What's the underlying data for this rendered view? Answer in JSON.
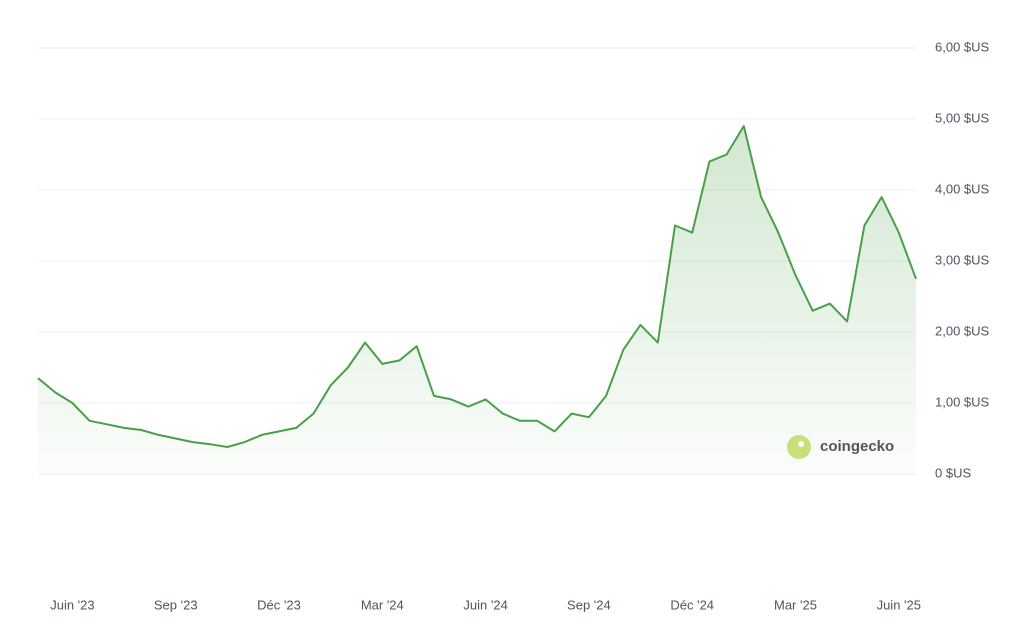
{
  "chart_data": {
    "type": "line",
    "categories": [
      null,
      null,
      "Juin '23",
      null,
      null,
      null,
      null,
      null,
      "Sep '23",
      null,
      null,
      null,
      null,
      null,
      "Déc '23",
      null,
      null,
      null,
      null,
      null,
      "Mar '24",
      null,
      null,
      null,
      null,
      null,
      "Juin '24",
      null,
      null,
      null,
      null,
      null,
      "Sep '24",
      null,
      null,
      null,
      null,
      null,
      "Déc '24",
      null,
      null,
      null,
      null,
      null,
      "Mar '25",
      null,
      null,
      null,
      null,
      null,
      "Juin '25",
      null
    ],
    "series": [
      {
        "color": "#4a9f48",
        "values": [
          1.35,
          1.15,
          1.0,
          0.75,
          0.7,
          0.65,
          0.62,
          0.55,
          0.5,
          0.45,
          0.42,
          0.38,
          0.45,
          0.55,
          0.6,
          0.65,
          0.85,
          1.25,
          1.5,
          1.85,
          1.55,
          1.6,
          1.8,
          1.1,
          1.05,
          0.95,
          1.05,
          0.85,
          0.75,
          0.75,
          0.6,
          0.85,
          0.8,
          1.1,
          1.75,
          2.1,
          1.85,
          3.5,
          3.4,
          4.4,
          4.5,
          4.9,
          3.9,
          3.4,
          2.8,
          2.3,
          2.4,
          2.15,
          3.5,
          3.9,
          3.4,
          2.75
        ]
      }
    ],
    "ylim": [
      0,
      6
    ],
    "yticks": [
      {
        "value": 0,
        "label": "0 $US"
      },
      {
        "value": 1,
        "label": "1,00 $US"
      },
      {
        "value": 2,
        "label": "2,00 $US"
      },
      {
        "value": 3,
        "label": "3,00 $US"
      },
      {
        "value": 4,
        "label": "4,00 $US"
      },
      {
        "value": 5,
        "label": "5,00 $US"
      },
      {
        "value": 6,
        "label": "6,00 $US"
      }
    ],
    "grid": true,
    "watermark": "coingecko"
  }
}
